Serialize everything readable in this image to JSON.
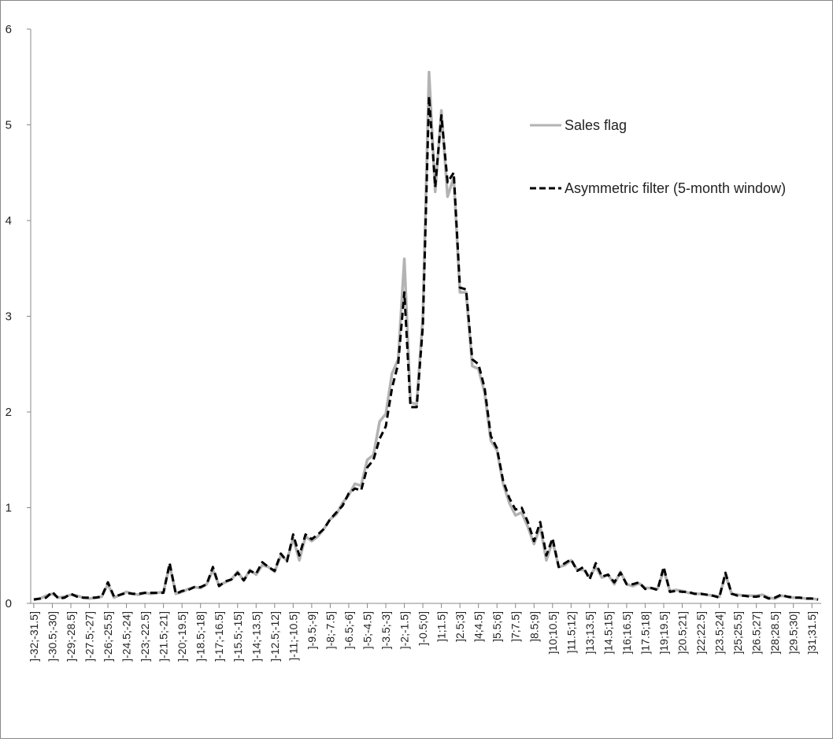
{
  "chart_data": {
    "type": "line",
    "title": "",
    "xlabel": "",
    "ylabel": "",
    "ylim": [
      0,
      6
    ],
    "yticks": [
      "0",
      "1",
      "2",
      "3",
      "4",
      "5",
      "6"
    ],
    "grid": false,
    "legend_position": "top-right",
    "x_label_step": 3,
    "categories": [
      "]-32;-31.5]",
      "]-31.5;-31]",
      "]-31;-30.5]",
      "]-30.5;-30]",
      "]-30;-29.5]",
      "]-29.5;-29]",
      "]-29;-28.5]",
      "]-28.5;-28]",
      "]-28;-27.5]",
      "]-27.5;-27]",
      "]-27;-26.5]",
      "]-26.5;-26]",
      "]-26;-25.5]",
      "]-25.5;-25]",
      "]-25;-24.5]",
      "]-24.5;-24]",
      "]-24;-23.5]",
      "]-23.5;-23]",
      "]-23;-22.5]",
      "]-22.5;-22]",
      "]-22;-21.5]",
      "]-21.5;-21]",
      "]-21;-20.5]",
      "]-20.5;-20]",
      "]-20;-19.5]",
      "]-19.5;-19]",
      "]-19;-18.5]",
      "]-18.5;-18]",
      "]-18;-17.5]",
      "]-17.5;-17]",
      "]-17;-16.5]",
      "]-16.5;-16]",
      "]-16;-15.5]",
      "]-15.5;-15]",
      "]-15;-14.5]",
      "]-14.5;-14]",
      "]-14;-13.5]",
      "]-13.5;-13]",
      "]-13;-12.5]",
      "]-12.5;-12]",
      "]-12;-11.5]",
      "]-11.5;-11]",
      "]-11;-10.5]",
      "]-10.5;-10]",
      "]-10;-9.5]",
      "]-9.5;-9]",
      "]-9;-8.5]",
      "]-8.5;-8]",
      "]-8;-7.5]",
      "]-7.5;-7]",
      "]-7;-6.5]",
      "]-6.5;-6]",
      "]-6;-5.5]",
      "]-5.5;-5]",
      "]-5;-4.5]",
      "]-4.5;-4]",
      "]-4;-3.5]",
      "]-3.5;-3]",
      "]-3;-2.5]",
      "]-2.5;-2]",
      "]-2;-1.5]",
      "]-1.5;-1]",
      "]-1;-0.5]",
      "]-0.5;0]",
      "]0;0.5]",
      "]0.5;1]",
      "]1;1.5]",
      "]1.5;2]",
      "]2;2.5]",
      "]2.5;3]",
      "]3;3.5]",
      "]3.5;4]",
      "]4;4.5]",
      "]4.5;5]",
      "]5;5.5]",
      "]5.5;6]",
      "]6;6.5]",
      "]6.5;7]",
      "]7;7.5]",
      "]7.5;8]",
      "]8;8.5]",
      "]8.5;9]",
      "]9;9.5]",
      "]9.5;10]",
      "]10;10.5]",
      "]10.5;11]",
      "]11;11.5]",
      "]11.5;12]",
      "]12;12.5]",
      "]12.5;13]",
      "]13;13.5]",
      "]13.5;14]",
      "]14;14.5]",
      "]14.5;15]",
      "]15;15.5]",
      "]15.5;16]",
      "]16;16.5]",
      "]16.5;17]",
      "]17;17.5]",
      "]17.5;18]",
      "]18;18.5]",
      "]18.5;19]",
      "]19;19.5]",
      "]19.5;20]",
      "]20;20.5]",
      "]20.5;21]",
      "]21;21.5]",
      "]21.5;22]",
      "]22;22.5]",
      "]22.5;23]",
      "]23;23.5]",
      "]23.5;24]",
      "]24;24.5]",
      "]24.5;25]",
      "]25;25.5]",
      "]25.5;26]",
      "]26;26.5]",
      "]26.5;27]",
      "]27;27.5]",
      "]27.5;28]",
      "]28;28.5]",
      "]28.5;29]",
      "]29;29.5]",
      "]29.5;30]",
      "]30;30.5]",
      "]30.5;31]",
      "]31;31.5]",
      "]31.5;32]"
    ],
    "series": [
      {
        "name": "Sales flag",
        "color": "#b3b3b3",
        "dash": "solid",
        "values": [
          0.04,
          0.05,
          0.08,
          0.1,
          0.06,
          0.07,
          0.09,
          0.08,
          0.06,
          0.05,
          0.06,
          0.07,
          0.2,
          0.06,
          0.09,
          0.12,
          0.1,
          0.09,
          0.11,
          0.1,
          0.11,
          0.12,
          0.4,
          0.1,
          0.12,
          0.15,
          0.17,
          0.16,
          0.2,
          0.35,
          0.19,
          0.22,
          0.25,
          0.33,
          0.24,
          0.35,
          0.3,
          0.4,
          0.38,
          0.33,
          0.5,
          0.45,
          0.68,
          0.45,
          0.7,
          0.65,
          0.7,
          0.78,
          0.88,
          0.93,
          1.05,
          1.13,
          1.25,
          1.23,
          1.5,
          1.55,
          1.9,
          1.98,
          2.4,
          2.55,
          3.6,
          2.1,
          2.08,
          3.0,
          5.55,
          4.3,
          5.15,
          4.25,
          4.45,
          3.25,
          3.25,
          2.48,
          2.45,
          2.2,
          1.7,
          1.6,
          1.25,
          1.05,
          0.92,
          0.95,
          0.8,
          0.62,
          0.8,
          0.45,
          0.65,
          0.38,
          0.4,
          0.45,
          0.35,
          0.35,
          0.28,
          0.38,
          0.27,
          0.3,
          0.2,
          0.33,
          0.2,
          0.18,
          0.21,
          0.16,
          0.16,
          0.15,
          0.35,
          0.13,
          0.14,
          0.13,
          0.11,
          0.1,
          0.1,
          0.09,
          0.08,
          0.07,
          0.3,
          0.1,
          0.09,
          0.08,
          0.08,
          0.08,
          0.09,
          0.06,
          0.05,
          0.08,
          0.07,
          0.06,
          0.06,
          0.05,
          0.05,
          0.04
        ]
      },
      {
        "name": "Asymmetric filter (5-month window)",
        "color": "#000000",
        "dash": "dashed",
        "values": [
          0.04,
          0.05,
          0.06,
          0.12,
          0.05,
          0.06,
          0.1,
          0.07,
          0.06,
          0.06,
          0.06,
          0.07,
          0.22,
          0.07,
          0.09,
          0.11,
          0.1,
          0.1,
          0.11,
          0.11,
          0.11,
          0.11,
          0.42,
          0.1,
          0.13,
          0.14,
          0.17,
          0.17,
          0.2,
          0.38,
          0.18,
          0.23,
          0.25,
          0.32,
          0.24,
          0.34,
          0.31,
          0.43,
          0.38,
          0.34,
          0.52,
          0.44,
          0.72,
          0.5,
          0.72,
          0.67,
          0.72,
          0.78,
          0.88,
          0.95,
          1.02,
          1.15,
          1.2,
          1.18,
          1.42,
          1.5,
          1.72,
          1.85,
          2.25,
          2.5,
          3.25,
          2.05,
          2.05,
          2.9,
          5.3,
          4.35,
          5.1,
          4.4,
          4.5,
          3.3,
          3.28,
          2.55,
          2.5,
          2.25,
          1.75,
          1.62,
          1.28,
          1.1,
          0.98,
          1.0,
          0.85,
          0.65,
          0.85,
          0.5,
          0.68,
          0.38,
          0.42,
          0.46,
          0.34,
          0.38,
          0.25,
          0.42,
          0.28,
          0.3,
          0.22,
          0.32,
          0.2,
          0.2,
          0.22,
          0.15,
          0.16,
          0.14,
          0.38,
          0.12,
          0.13,
          0.12,
          0.12,
          0.1,
          0.1,
          0.09,
          0.08,
          0.06,
          0.32,
          0.1,
          0.08,
          0.08,
          0.07,
          0.07,
          0.08,
          0.05,
          0.06,
          0.09,
          0.07,
          0.06,
          0.06,
          0.05,
          0.05,
          0.04
        ]
      }
    ]
  }
}
